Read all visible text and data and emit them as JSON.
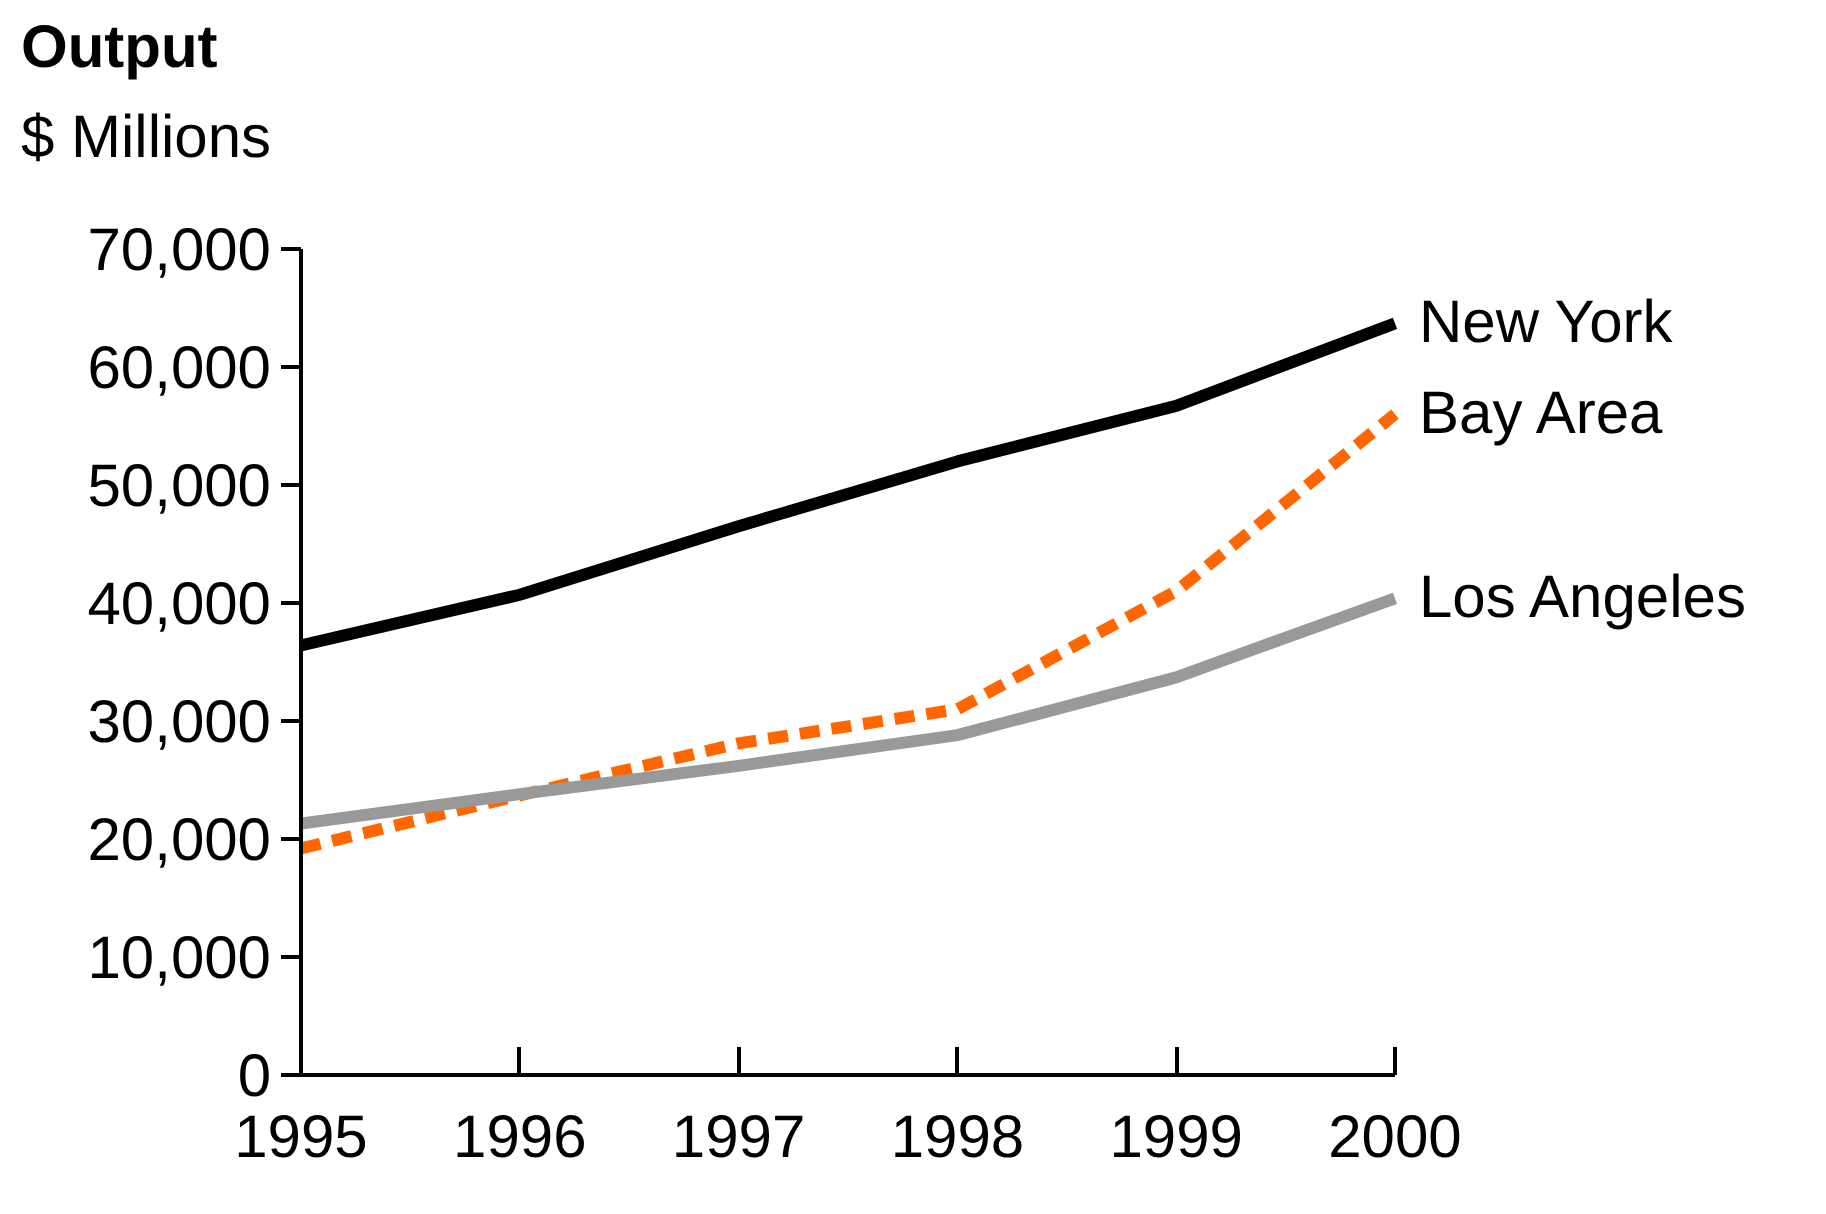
{
  "chart_data": {
    "type": "line",
    "title": "Output",
    "subtitle": "$ Millions",
    "x": [
      1995,
      1996,
      1997,
      1998,
      1999,
      2000
    ],
    "series": [
      {
        "name": "New York",
        "color": "#000000",
        "line_style": "solid",
        "values": [
          36400,
          40700,
          46500,
          52000,
          56700,
          63700
        ]
      },
      {
        "name": "Bay Area",
        "color": "#ff6600",
        "line_style": "dashed",
        "values": [
          19200,
          23700,
          28100,
          31000,
          41000,
          56000
        ]
      },
      {
        "name": "Los Angeles",
        "color": "#999999",
        "line_style": "solid",
        "values": [
          21300,
          23800,
          26200,
          28800,
          33700,
          40400
        ]
      }
    ],
    "xlim": [
      1995,
      2000
    ],
    "xticks": [
      1995,
      1996,
      1997,
      1998,
      1999,
      2000
    ],
    "ylim": [
      0,
      70000
    ],
    "yticks": [
      0,
      {
        "value": 10000,
        "label": "10,000"
      },
      {
        "value": 20000,
        "label": "20,000"
      },
      {
        "value": 30000,
        "label": "30,000"
      },
      {
        "value": 40000,
        "label": "40,000"
      },
      {
        "value": 50000,
        "label": "50,000"
      },
      {
        "value": 60000,
        "label": "60,000"
      },
      {
        "value": 70000,
        "label": "70,000"
      }
    ],
    "grid": false,
    "marker": "none"
  }
}
